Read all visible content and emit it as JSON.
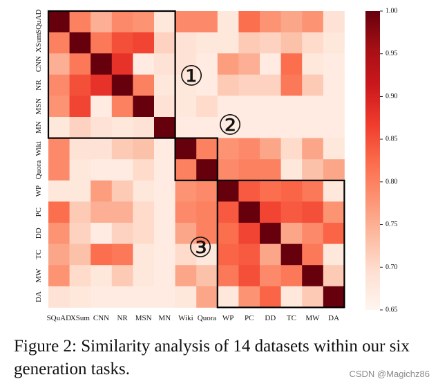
{
  "chart_data": {
    "type": "heatmap",
    "title": "",
    "xlabel": "",
    "ylabel": "",
    "x_labels": [
      "SQuAD",
      "XSum",
      "CNN",
      "NR",
      "MSN",
      "MN",
      "Wiki",
      "Quora",
      "WP",
      "PC",
      "DD",
      "TC",
      "MW",
      "DA"
    ],
    "y_labels": [
      "SQuAD",
      "XSum",
      "CNN",
      "NR",
      "MSN",
      "MN",
      "Wiki",
      "Quora",
      "WP",
      "PC",
      "DD",
      "TC",
      "MW",
      "DA"
    ],
    "colorbar": {
      "min": 0.65,
      "max": 1.0,
      "ticks": [
        "1.00",
        "0.95",
        "0.90",
        "0.85",
        "0.80",
        "0.75",
        "0.70",
        "0.65"
      ],
      "colormap": "Reds"
    },
    "values": [
      [
        1.0,
        0.8,
        0.75,
        0.79,
        0.78,
        0.68,
        0.79,
        0.79,
        0.68,
        0.82,
        0.78,
        0.76,
        0.78,
        0.69
      ],
      [
        0.8,
        1.0,
        0.81,
        0.85,
        0.86,
        0.71,
        0.69,
        0.68,
        0.68,
        0.72,
        0.71,
        0.73,
        0.7,
        0.68
      ],
      [
        0.75,
        0.81,
        1.0,
        0.88,
        0.67,
        0.69,
        0.69,
        0.67,
        0.77,
        0.75,
        0.67,
        0.82,
        0.68,
        0.67
      ],
      [
        0.79,
        0.85,
        0.88,
        1.0,
        0.8,
        0.68,
        0.68,
        0.67,
        0.72,
        0.71,
        0.71,
        0.81,
        0.72,
        0.67
      ],
      [
        0.78,
        0.86,
        0.67,
        0.8,
        1.0,
        0.69,
        0.68,
        0.7,
        0.67,
        0.67,
        0.67,
        0.67,
        0.67,
        0.67
      ],
      [
        0.68,
        0.71,
        0.69,
        0.68,
        0.69,
        1.0,
        0.67,
        0.67,
        0.67,
        0.67,
        0.67,
        0.67,
        0.67,
        0.67
      ],
      [
        0.79,
        0.69,
        0.69,
        0.72,
        0.73,
        0.67,
        1.0,
        0.8,
        0.78,
        0.79,
        0.76,
        0.7,
        0.76,
        0.68
      ],
      [
        0.79,
        0.68,
        0.67,
        0.67,
        0.7,
        0.67,
        0.8,
        1.0,
        0.79,
        0.8,
        0.8,
        0.68,
        0.73,
        0.76
      ],
      [
        0.68,
        0.68,
        0.77,
        0.72,
        0.68,
        0.67,
        0.78,
        0.79,
        1.0,
        0.84,
        0.82,
        0.83,
        0.81,
        0.68
      ],
      [
        0.82,
        0.72,
        0.75,
        0.75,
        0.7,
        0.67,
        0.79,
        0.8,
        0.84,
        1.0,
        0.86,
        0.84,
        0.85,
        0.78
      ],
      [
        0.78,
        0.71,
        0.67,
        0.71,
        0.7,
        0.67,
        0.76,
        0.8,
        0.82,
        0.86,
        1.0,
        0.76,
        0.79,
        0.83
      ],
      [
        0.76,
        0.73,
        0.82,
        0.81,
        0.68,
        0.67,
        0.7,
        0.68,
        0.83,
        0.84,
        0.76,
        1.0,
        0.81,
        0.68
      ],
      [
        0.78,
        0.7,
        0.68,
        0.72,
        0.68,
        0.67,
        0.76,
        0.73,
        0.81,
        0.85,
        0.79,
        0.81,
        1.0,
        0.72
      ],
      [
        0.69,
        0.68,
        0.67,
        0.67,
        0.67,
        0.67,
        0.68,
        0.76,
        0.68,
        0.78,
        0.83,
        0.68,
        0.72,
        1.0
      ]
    ],
    "groups": [
      {
        "label": "①",
        "start": 0,
        "end": 5
      },
      {
        "label": "②",
        "start": 6,
        "end": 7
      },
      {
        "label": "③",
        "start": 8,
        "end": 13
      }
    ],
    "low_color": "#fff5f0",
    "high_color": "#67000d"
  },
  "caption": "Figure 2: Similarity analysis of 14 datasets within our six generation tasks.",
  "watermark": "CSDN @Magichz86"
}
